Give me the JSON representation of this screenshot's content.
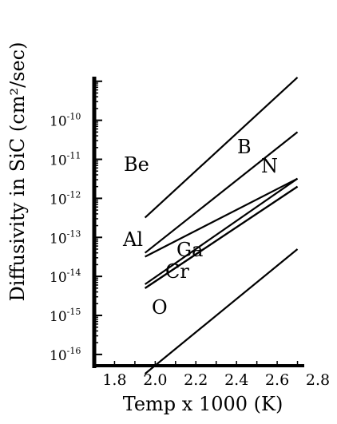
{
  "chart_data": {
    "type": "line",
    "title": "",
    "xlabel": "Temp x 1000 (K)",
    "ylabel": "Diffusivity in SiC (cm²/sec)",
    "xlim": [
      1.7,
      2.8
    ],
    "ylim_log10": [
      -16.35,
      -8.8
    ],
    "yscale": "log",
    "grid": false,
    "x_ticks": [
      "1.8",
      "2.0",
      "2.2",
      "2.4",
      "2.6",
      "2.8"
    ],
    "y_ticks": [
      {
        "base": "10",
        "exp": "-16"
      },
      {
        "base": "10",
        "exp": "-15"
      },
      {
        "base": "10",
        "exp": "-14"
      },
      {
        "base": "10",
        "exp": "-13"
      },
      {
        "base": "10",
        "exp": "-12"
      },
      {
        "base": "10",
        "exp": "-11"
      },
      {
        "base": "10",
        "exp": "-10"
      }
    ],
    "series": [
      {
        "name": "Be",
        "x": [
          1.95,
          2.7
        ],
        "y": [
          3.2e-13,
          1.26e-09
        ]
      },
      {
        "name": "B",
        "x": [
          1.95,
          2.7
        ],
        "y": [
          4e-14,
          5e-11
        ]
      },
      {
        "name": "N",
        "x": [
          1.95,
          2.7
        ],
        "y": [
          3.2e-14,
          3.2e-12
        ]
      },
      {
        "name": "Al",
        "x": [
          1.95,
          2.7
        ],
        "y": [
          6.3e-15,
          3.2e-12
        ]
      },
      {
        "name": "Ga",
        "x": [
          1.95,
          2.7
        ],
        "y": [
          5e-15,
          2e-12
        ]
      },
      {
        "name": "Cr",
        "x": [
          1.95,
          2.7
        ],
        "y": [
          5e-15,
          2e-12
        ]
      },
      {
        "name": "O",
        "x": [
          1.95,
          2.7
        ],
        "y": [
          3.2e-17,
          5e-14
        ]
      }
    ]
  }
}
